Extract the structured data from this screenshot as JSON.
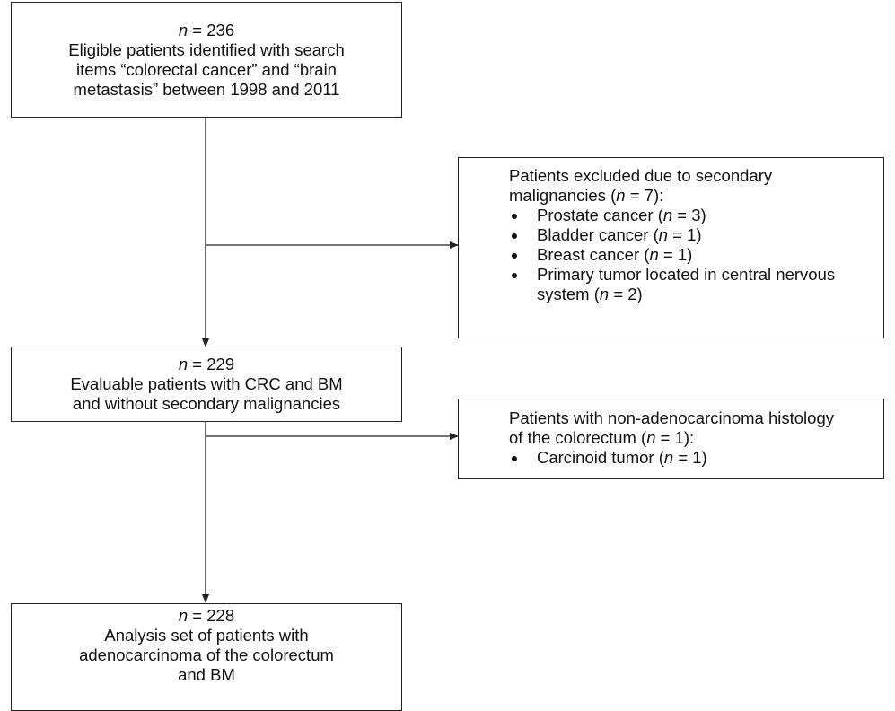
{
  "boxes": [
    {
      "lines": [
        [
          {
            "italic": "n"
          },
          " = 236"
        ],
        [
          "Eligible patients identified with search"
        ],
        [
          "items “colorectal cancer” and “brain"
        ],
        [
          "metastasis” between 1998 and 2011"
        ]
      ]
    },
    {
      "lines": [
        [
          {
            "italic": "n"
          },
          " = 229"
        ],
        [
          "Evaluable patients with CRC and BM"
        ],
        [
          "and without secondary malignancies"
        ]
      ]
    },
    {
      "lines": [
        [
          {
            "italic": "n"
          },
          " = 228"
        ],
        [
          "Analysis set of patients with"
        ],
        [
          "adenocarcinoma of the colorectum"
        ],
        [
          "and BM"
        ]
      ]
    }
  ],
  "exclusions": [
    {
      "heading": [
        [
          "Patients excluded due to secondary"
        ],
        [
          "malignancies (",
          {
            "italic": "n"
          },
          " = 7):"
        ]
      ],
      "items": [
        [
          "Prostate cancer (",
          {
            "italic": "n"
          },
          " = 3)"
        ],
        [
          "Bladder cancer (",
          {
            "italic": "n"
          },
          " = 1)"
        ],
        [
          "Breast cancer (",
          {
            "italic": "n"
          },
          " = 1)"
        ],
        [
          "Primary tumor located in central nervous system (",
          {
            "italic": "n"
          },
          " = 2)"
        ]
      ]
    },
    {
      "heading": [
        [
          "Patients with non-adenocarcinoma histology"
        ],
        [
          "of the colorectum (",
          {
            "italic": "n"
          },
          " = 1):"
        ]
      ],
      "items": [
        [
          "Carcinoid tumor (",
          {
            "italic": "n"
          },
          " = 1)"
        ]
      ]
    }
  ]
}
